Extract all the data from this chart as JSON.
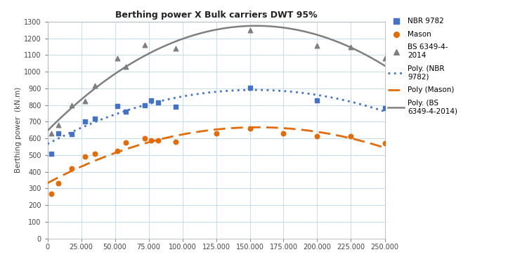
{
  "title": "Berthing power X Bulk carriers DWT 95%",
  "xlabel": "",
  "ylabel": "Berthing power  (kN.m)",
  "xlim": [
    0,
    250000
  ],
  "ylim": [
    0,
    1300
  ],
  "xticks": [
    0,
    25000,
    50000,
    75000,
    100000,
    125000,
    150000,
    175000,
    200000,
    225000,
    250000
  ],
  "yticks": [
    0,
    100,
    200,
    300,
    400,
    500,
    600,
    700,
    800,
    900,
    1000,
    1100,
    1200,
    1300
  ],
  "nbr_x": [
    3000,
    8000,
    18000,
    28000,
    35000,
    52000,
    58000,
    72000,
    77000,
    82000,
    95000,
    150000,
    200000,
    250000
  ],
  "nbr_y": [
    510,
    630,
    625,
    700,
    720,
    795,
    760,
    800,
    830,
    815,
    790,
    905,
    830,
    780
  ],
  "mason_x": [
    3000,
    8000,
    18000,
    28000,
    35000,
    52000,
    58000,
    72000,
    77000,
    82000,
    95000,
    125000,
    150000,
    175000,
    200000,
    225000,
    250000
  ],
  "mason_y": [
    270,
    330,
    420,
    490,
    510,
    525,
    575,
    600,
    590,
    590,
    580,
    630,
    660,
    630,
    615,
    615,
    570
  ],
  "bs_x": [
    3000,
    8000,
    18000,
    28000,
    35000,
    52000,
    58000,
    72000,
    95000,
    150000,
    200000,
    225000,
    250000
  ],
  "bs_y": [
    630,
    680,
    800,
    825,
    915,
    1080,
    1030,
    1160,
    1140,
    1250,
    1155,
    1150,
    1080
  ],
  "nbr_color": "#4472C4",
  "mason_color": "#E36C09",
  "bs_color": "#7F7F7F",
  "poly_nbr_color": "#4472C4",
  "poly_mason_color": "#E36C09",
  "poly_bs_color": "#7F7F7F",
  "bg_color": "#FFFFFF",
  "grid_color": "#C5DCF0"
}
